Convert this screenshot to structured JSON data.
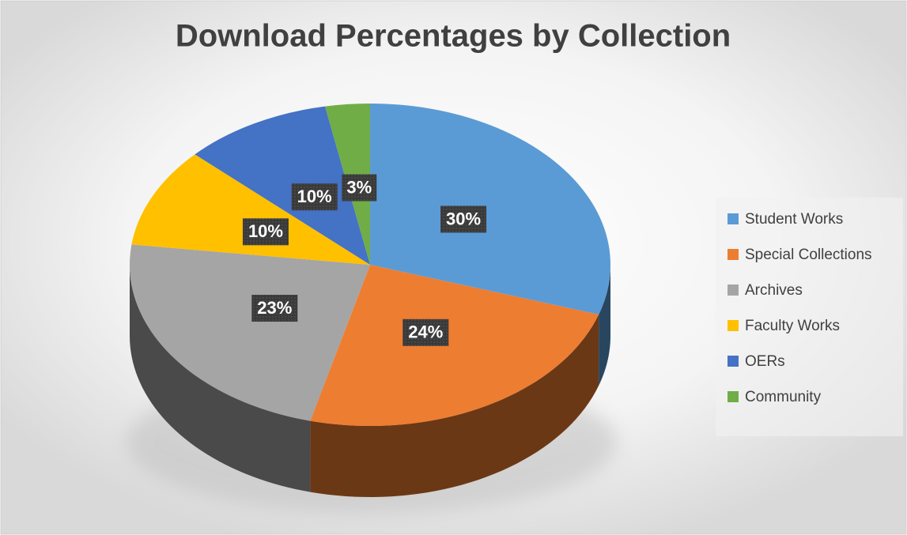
{
  "chart_data": {
    "type": "pie",
    "title": "Download Percentages by Collection",
    "categories": [
      "Student Works",
      "Special Collections",
      "Archives",
      "Faculty Works",
      "OERs",
      "Community"
    ],
    "values": [
      30,
      24,
      23,
      10,
      10,
      3
    ],
    "value_labels": [
      "30%",
      "24%",
      "23%",
      "10%",
      "10%",
      "3%"
    ],
    "colors": [
      "#5b9bd5",
      "#ed7d31",
      "#a5a5a5",
      "#ffc000",
      "#4472c4",
      "#70ad47"
    ],
    "legend": "right"
  }
}
